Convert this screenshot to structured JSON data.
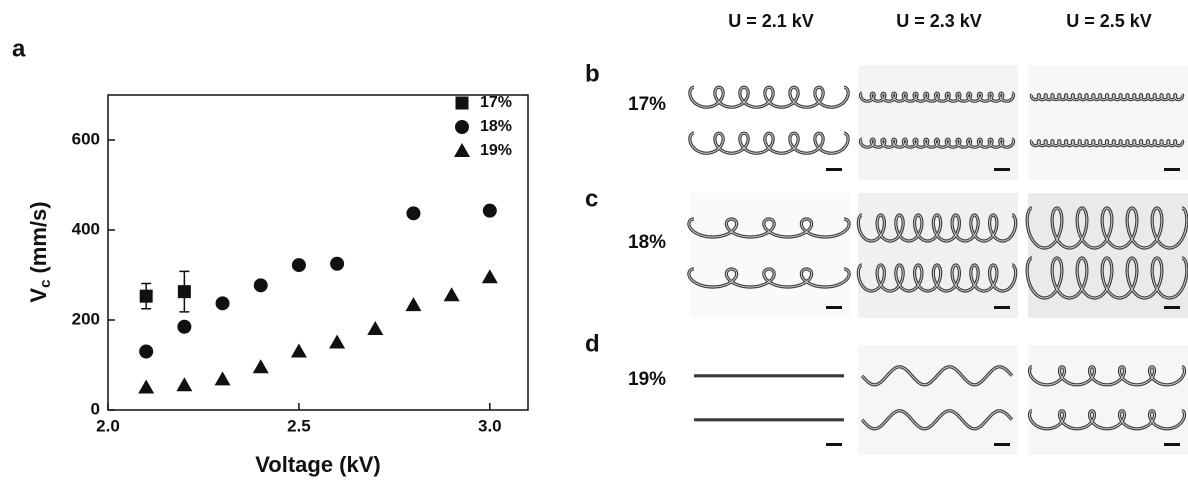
{
  "chart_data": {
    "type": "scatter",
    "panel_label": "a",
    "x_label": "Voltage (kV)",
    "y_label_symbol": "V",
    "y_label_subscript": "c",
    "y_label_unit": "(mm/s)",
    "xlim": [
      2.0,
      3.1
    ],
    "ylim": [
      0,
      700
    ],
    "xticks": [
      {
        "value": 2.0,
        "label": "2.0"
      },
      2.5,
      {
        "value": 3.0,
        "label": "3.0"
      }
    ],
    "yticks": [
      0,
      200,
      400,
      600
    ],
    "legend": "top-right",
    "series": [
      {
        "name": "17%",
        "color": "#111111",
        "marker": "square",
        "x": [
          2.1,
          2.2
        ],
        "values": [
          253,
          263
        ],
        "errors": [
          28,
          45
        ]
      },
      {
        "name": "18%",
        "color": "#111111",
        "marker": "circle",
        "x": [
          2.1,
          2.2,
          2.3,
          2.4,
          2.5,
          2.6,
          2.8,
          3.0
        ],
        "values": [
          130,
          185,
          237,
          277,
          322,
          325,
          437,
          443
        ]
      },
      {
        "name": "19%",
        "color": "#111111",
        "marker": "triangle",
        "x": [
          2.1,
          2.2,
          2.3,
          2.4,
          2.5,
          2.6,
          2.7,
          2.8,
          2.9,
          3.0
        ],
        "values": [
          50,
          55,
          68,
          95,
          130,
          150,
          180,
          233,
          255,
          295
        ]
      }
    ]
  },
  "panels": {
    "letters": [
      "b",
      "c",
      "d"
    ],
    "columns": [
      "U = 2.1 kV",
      "U = 2.3 kV",
      "U = 2.5 kV"
    ],
    "rows": [
      "17%",
      "18%",
      "19%"
    ]
  }
}
